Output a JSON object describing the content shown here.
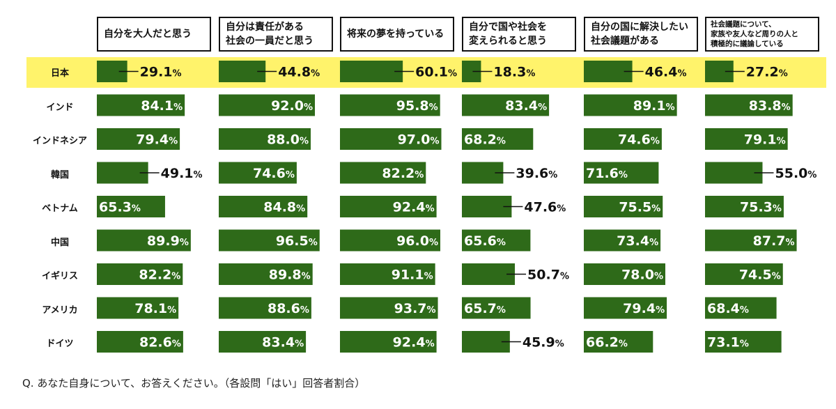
{
  "chart_data": {
    "type": "bar",
    "title": "",
    "footnote": "Q. あなた自身について、お答えください。（各設問「はい」回答者割合）",
    "countries": [
      "日本",
      "インド",
      "インドネシア",
      "韓国",
      "ベトナム",
      "中国",
      "イギリス",
      "アメリカ",
      "ドイツ"
    ],
    "highlight_country": "日本",
    "unit": "%",
    "xlim": [
      0,
      100
    ],
    "columns": [
      {
        "label": "自分を大人だと思う",
        "values": [
          29.1,
          84.1,
          79.4,
          49.1,
          65.3,
          89.9,
          82.2,
          78.1,
          82.6
        ]
      },
      {
        "label": "自分は責任がある\n社会の一員だと思う",
        "values": [
          44.8,
          92.0,
          88.0,
          74.6,
          84.8,
          96.5,
          89.8,
          88.6,
          83.4
        ]
      },
      {
        "label": "将来の夢を持っている",
        "values": [
          60.1,
          95.8,
          97.0,
          82.2,
          92.4,
          96.0,
          91.1,
          93.7,
          92.4
        ]
      },
      {
        "label": "自分で国や社会を\n変えられると思う",
        "values": [
          18.3,
          83.4,
          68.2,
          39.6,
          47.6,
          65.6,
          50.7,
          65.7,
          45.9
        ]
      },
      {
        "label": "自分の国に解決したい\n社会議題がある",
        "values": [
          46.4,
          89.1,
          74.6,
          71.6,
          75.5,
          73.4,
          78.0,
          79.4,
          66.2
        ]
      },
      {
        "label": "社会議題について、\n家族や友人など周りの人と\n積極的に議論している",
        "values": [
          27.2,
          83.8,
          79.1,
          55.0,
          75.3,
          87.7,
          74.5,
          68.4,
          73.1
        ]
      }
    ]
  },
  "colors": {
    "bar": "#2e6a19",
    "bar_text": "#ffffff",
    "outside_text": "#111111",
    "highlight": "#fff36b"
  }
}
